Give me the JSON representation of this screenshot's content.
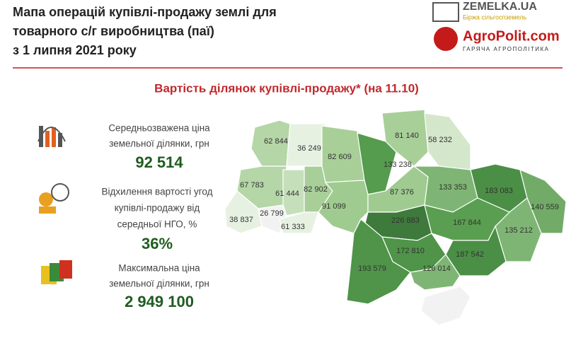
{
  "header": {
    "title_lines": [
      "Мапа операцій купівлі-продажу землі для",
      "товарного с/г виробництва (паї)",
      "з 1 липня 2021 року"
    ],
    "logos": [
      {
        "name": "ZEMELKA.UA",
        "tagline": "Біржа сільгоспземель"
      },
      {
        "name": "AgroPolit.com",
        "tagline": "ГАРЯЧА АГРОПОЛІТИКА"
      }
    ]
  },
  "subtitle": "Вартість ділянок купівлі-продажу* (на 11.10)",
  "stats": [
    {
      "label_lines": [
        "Середньозважена ціна",
        "земельної ділянки, грн"
      ],
      "value": "92 514"
    },
    {
      "label_lines": [
        "Відхилення вартості угод",
        "купівлі-продажу від",
        "середньої НГО, %"
      ],
      "value": "36%"
    },
    {
      "label_lines": [
        "Максимальна ціна",
        "земельної ділянки, грн"
      ],
      "value": "2 949 100"
    }
  ],
  "map": {
    "regions": [
      {
        "label": "62 844"
      },
      {
        "label": "36 249"
      },
      {
        "label": "82 609"
      },
      {
        "label": "133 238"
      },
      {
        "label": "81 140"
      },
      {
        "label": "58 232"
      },
      {
        "label": "67 783"
      },
      {
        "label": "61 444"
      },
      {
        "label": "82 902"
      },
      {
        "label": "91 099"
      },
      {
        "label": "87 376"
      },
      {
        "label": "133 353"
      },
      {
        "label": "183 083"
      },
      {
        "label": "140 559"
      },
      {
        "label": "135 212"
      },
      {
        "label": "38 837"
      },
      {
        "label": "26 799"
      },
      {
        "label": "61 333"
      },
      {
        "label": "226 883"
      },
      {
        "label": "167 844"
      },
      {
        "label": "172 810"
      },
      {
        "label": "187 542"
      },
      {
        "label": "193 579"
      },
      {
        "label": "126 014"
      }
    ]
  }
}
